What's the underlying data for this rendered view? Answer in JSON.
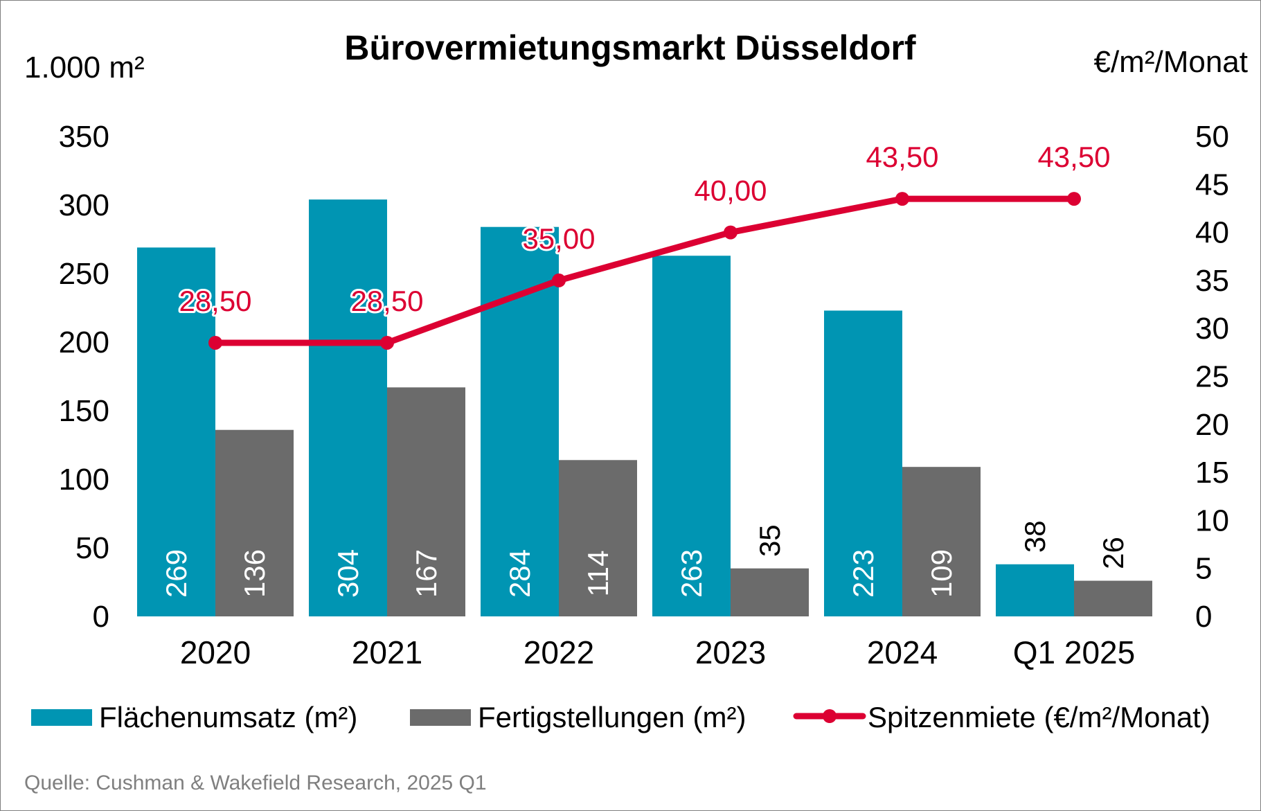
{
  "chart_data": {
    "type": "bar",
    "title": "Bürovermietungsmarkt Düsseldorf",
    "y_left_unit": "1.000 m²",
    "y_right_unit": "€/m²/Monat",
    "categories": [
      "2020",
      "2021",
      "2022",
      "2023",
      "2024",
      "Q1 2025"
    ],
    "ylim_left": [
      0,
      350
    ],
    "yticks_left": [
      "0",
      "50",
      "100",
      "150",
      "200",
      "250",
      "300",
      "350"
    ],
    "ylim_right": [
      0,
      50
    ],
    "yticks_right": [
      "0",
      "5",
      "10",
      "15",
      "20",
      "25",
      "30",
      "35",
      "40",
      "45",
      "50"
    ],
    "series": [
      {
        "name": "Flächenumsatz (m²)",
        "kind": "bar",
        "axis": "left",
        "color": "#0095b3",
        "values": [
          269,
          304,
          284,
          263,
          223,
          38
        ],
        "labels": [
          "269",
          "304",
          "284",
          "263",
          "223",
          "38"
        ]
      },
      {
        "name": "Fertigstellungen (m²)",
        "kind": "bar",
        "axis": "left",
        "color": "#6b6b6b",
        "values": [
          136,
          167,
          114,
          35,
          109,
          26
        ],
        "labels": [
          "136",
          "167",
          "114",
          "35",
          "109",
          "26"
        ]
      },
      {
        "name": "Spitzenmiete (€/m²/Monat)",
        "kind": "line",
        "axis": "right",
        "color": "#dc0032",
        "values": [
          28.5,
          28.5,
          35.0,
          40.0,
          43.5,
          43.5
        ],
        "labels": [
          "28,50",
          "28,50",
          "35,00",
          "40,00",
          "43,50",
          "43,50"
        ]
      }
    ],
    "legend_position": "bottom",
    "grid": false
  },
  "source": "Quelle: Cushman & Wakefield Research, 2025 Q1"
}
